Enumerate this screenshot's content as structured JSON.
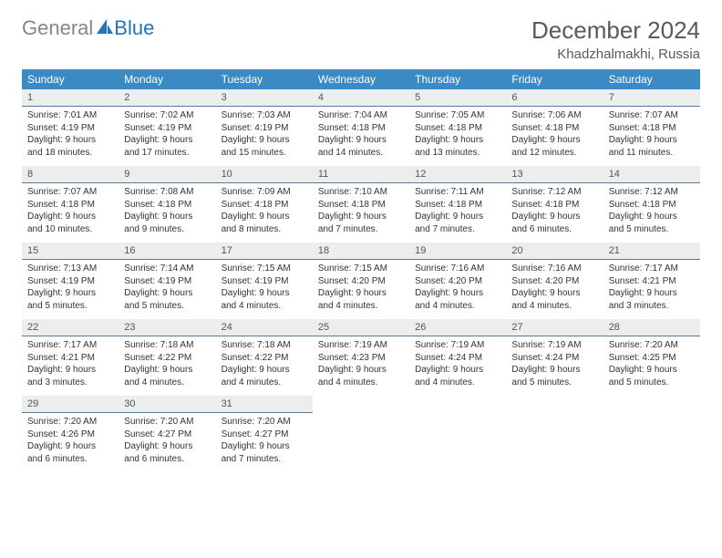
{
  "logo": {
    "text1": "General",
    "text2": "Blue"
  },
  "title": "December 2024",
  "location": "Khadzhalmakhi, Russia",
  "colors": {
    "header_bg": "#3b8ac4",
    "header_text": "#ffffff",
    "daynum_bg": "#eceded",
    "daynum_border": "#5c7a94",
    "logo_gray": "#878787",
    "logo_blue": "#2176b8",
    "title_color": "#5a5a5a"
  },
  "weekdays": [
    "Sunday",
    "Monday",
    "Tuesday",
    "Wednesday",
    "Thursday",
    "Friday",
    "Saturday"
  ],
  "weeks": [
    {
      "nums": [
        "1",
        "2",
        "3",
        "4",
        "5",
        "6",
        "7"
      ],
      "details": [
        {
          "sunrise": "Sunrise: 7:01 AM",
          "sunset": "Sunset: 4:19 PM",
          "day1": "Daylight: 9 hours",
          "day2": "and 18 minutes."
        },
        {
          "sunrise": "Sunrise: 7:02 AM",
          "sunset": "Sunset: 4:19 PM",
          "day1": "Daylight: 9 hours",
          "day2": "and 17 minutes."
        },
        {
          "sunrise": "Sunrise: 7:03 AM",
          "sunset": "Sunset: 4:19 PM",
          "day1": "Daylight: 9 hours",
          "day2": "and 15 minutes."
        },
        {
          "sunrise": "Sunrise: 7:04 AM",
          "sunset": "Sunset: 4:18 PM",
          "day1": "Daylight: 9 hours",
          "day2": "and 14 minutes."
        },
        {
          "sunrise": "Sunrise: 7:05 AM",
          "sunset": "Sunset: 4:18 PM",
          "day1": "Daylight: 9 hours",
          "day2": "and 13 minutes."
        },
        {
          "sunrise": "Sunrise: 7:06 AM",
          "sunset": "Sunset: 4:18 PM",
          "day1": "Daylight: 9 hours",
          "day2": "and 12 minutes."
        },
        {
          "sunrise": "Sunrise: 7:07 AM",
          "sunset": "Sunset: 4:18 PM",
          "day1": "Daylight: 9 hours",
          "day2": "and 11 minutes."
        }
      ]
    },
    {
      "nums": [
        "8",
        "9",
        "10",
        "11",
        "12",
        "13",
        "14"
      ],
      "details": [
        {
          "sunrise": "Sunrise: 7:07 AM",
          "sunset": "Sunset: 4:18 PM",
          "day1": "Daylight: 9 hours",
          "day2": "and 10 minutes."
        },
        {
          "sunrise": "Sunrise: 7:08 AM",
          "sunset": "Sunset: 4:18 PM",
          "day1": "Daylight: 9 hours",
          "day2": "and 9 minutes."
        },
        {
          "sunrise": "Sunrise: 7:09 AM",
          "sunset": "Sunset: 4:18 PM",
          "day1": "Daylight: 9 hours",
          "day2": "and 8 minutes."
        },
        {
          "sunrise": "Sunrise: 7:10 AM",
          "sunset": "Sunset: 4:18 PM",
          "day1": "Daylight: 9 hours",
          "day2": "and 7 minutes."
        },
        {
          "sunrise": "Sunrise: 7:11 AM",
          "sunset": "Sunset: 4:18 PM",
          "day1": "Daylight: 9 hours",
          "day2": "and 7 minutes."
        },
        {
          "sunrise": "Sunrise: 7:12 AM",
          "sunset": "Sunset: 4:18 PM",
          "day1": "Daylight: 9 hours",
          "day2": "and 6 minutes."
        },
        {
          "sunrise": "Sunrise: 7:12 AM",
          "sunset": "Sunset: 4:18 PM",
          "day1": "Daylight: 9 hours",
          "day2": "and 5 minutes."
        }
      ]
    },
    {
      "nums": [
        "15",
        "16",
        "17",
        "18",
        "19",
        "20",
        "21"
      ],
      "details": [
        {
          "sunrise": "Sunrise: 7:13 AM",
          "sunset": "Sunset: 4:19 PM",
          "day1": "Daylight: 9 hours",
          "day2": "and 5 minutes."
        },
        {
          "sunrise": "Sunrise: 7:14 AM",
          "sunset": "Sunset: 4:19 PM",
          "day1": "Daylight: 9 hours",
          "day2": "and 5 minutes."
        },
        {
          "sunrise": "Sunrise: 7:15 AM",
          "sunset": "Sunset: 4:19 PM",
          "day1": "Daylight: 9 hours",
          "day2": "and 4 minutes."
        },
        {
          "sunrise": "Sunrise: 7:15 AM",
          "sunset": "Sunset: 4:20 PM",
          "day1": "Daylight: 9 hours",
          "day2": "and 4 minutes."
        },
        {
          "sunrise": "Sunrise: 7:16 AM",
          "sunset": "Sunset: 4:20 PM",
          "day1": "Daylight: 9 hours",
          "day2": "and 4 minutes."
        },
        {
          "sunrise": "Sunrise: 7:16 AM",
          "sunset": "Sunset: 4:20 PM",
          "day1": "Daylight: 9 hours",
          "day2": "and 4 minutes."
        },
        {
          "sunrise": "Sunrise: 7:17 AM",
          "sunset": "Sunset: 4:21 PM",
          "day1": "Daylight: 9 hours",
          "day2": "and 3 minutes."
        }
      ]
    },
    {
      "nums": [
        "22",
        "23",
        "24",
        "25",
        "26",
        "27",
        "28"
      ],
      "details": [
        {
          "sunrise": "Sunrise: 7:17 AM",
          "sunset": "Sunset: 4:21 PM",
          "day1": "Daylight: 9 hours",
          "day2": "and 3 minutes."
        },
        {
          "sunrise": "Sunrise: 7:18 AM",
          "sunset": "Sunset: 4:22 PM",
          "day1": "Daylight: 9 hours",
          "day2": "and 4 minutes."
        },
        {
          "sunrise": "Sunrise: 7:18 AM",
          "sunset": "Sunset: 4:22 PM",
          "day1": "Daylight: 9 hours",
          "day2": "and 4 minutes."
        },
        {
          "sunrise": "Sunrise: 7:19 AM",
          "sunset": "Sunset: 4:23 PM",
          "day1": "Daylight: 9 hours",
          "day2": "and 4 minutes."
        },
        {
          "sunrise": "Sunrise: 7:19 AM",
          "sunset": "Sunset: 4:24 PM",
          "day1": "Daylight: 9 hours",
          "day2": "and 4 minutes."
        },
        {
          "sunrise": "Sunrise: 7:19 AM",
          "sunset": "Sunset: 4:24 PM",
          "day1": "Daylight: 9 hours",
          "day2": "and 5 minutes."
        },
        {
          "sunrise": "Sunrise: 7:20 AM",
          "sunset": "Sunset: 4:25 PM",
          "day1": "Daylight: 9 hours",
          "day2": "and 5 minutes."
        }
      ]
    },
    {
      "nums": [
        "29",
        "30",
        "31",
        "",
        "",
        "",
        ""
      ],
      "details": [
        {
          "sunrise": "Sunrise: 7:20 AM",
          "sunset": "Sunset: 4:26 PM",
          "day1": "Daylight: 9 hours",
          "day2": "and 6 minutes."
        },
        {
          "sunrise": "Sunrise: 7:20 AM",
          "sunset": "Sunset: 4:27 PM",
          "day1": "Daylight: 9 hours",
          "day2": "and 6 minutes."
        },
        {
          "sunrise": "Sunrise: 7:20 AM",
          "sunset": "Sunset: 4:27 PM",
          "day1": "Daylight: 9 hours",
          "day2": "and 7 minutes."
        },
        null,
        null,
        null,
        null
      ]
    }
  ]
}
